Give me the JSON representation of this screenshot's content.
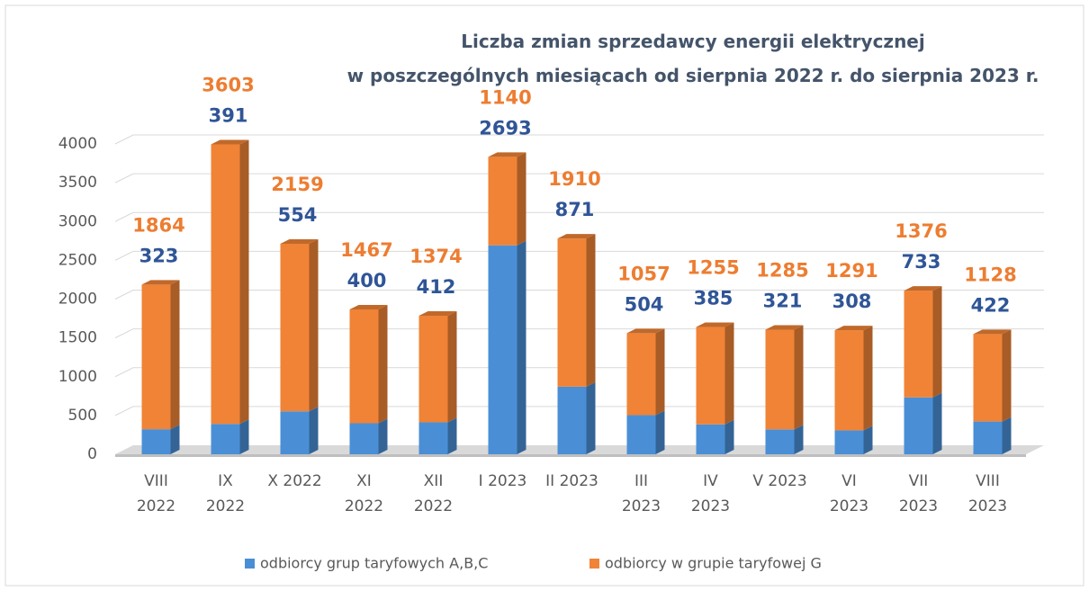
{
  "chart_data": {
    "type": "bar3d_stacked",
    "title": "Liczba zmian sprzedawcy energii elektrycznej\nw poszczególnych miesiącach od sierpnia 2022 r. do sierpnia 2023 r.",
    "categories": [
      "VIII\n2022",
      "IX\n2022",
      "X 2022",
      "XI\n2022",
      "XII\n2022",
      "I 2023",
      "II 2023",
      "III\n2023",
      "IV\n2023",
      "V 2023",
      "VI\n2023",
      "VII\n2023",
      "VIII\n2023"
    ],
    "series": [
      {
        "name": "odbiorcy grup taryfowych A,B,C",
        "color": "#4a8fd6",
        "label_color": "#2f5597",
        "values": [
          323,
          391,
          554,
          400,
          412,
          2693,
          871,
          504,
          385,
          321,
          308,
          733,
          422
        ]
      },
      {
        "name": "odbiorcy w grupie taryfowej G",
        "color": "#f08336",
        "label_color": "#ed7d31",
        "values": [
          1864,
          3603,
          2159,
          1467,
          1374,
          1140,
          1910,
          1057,
          1255,
          1285,
          1291,
          1376,
          1128
        ]
      }
    ],
    "ylim": [
      0,
      4000
    ],
    "yticks": [
      0,
      500,
      1000,
      1500,
      2000,
      2500,
      3000,
      3500,
      4000
    ],
    "grid": true,
    "legend": "bottom"
  }
}
